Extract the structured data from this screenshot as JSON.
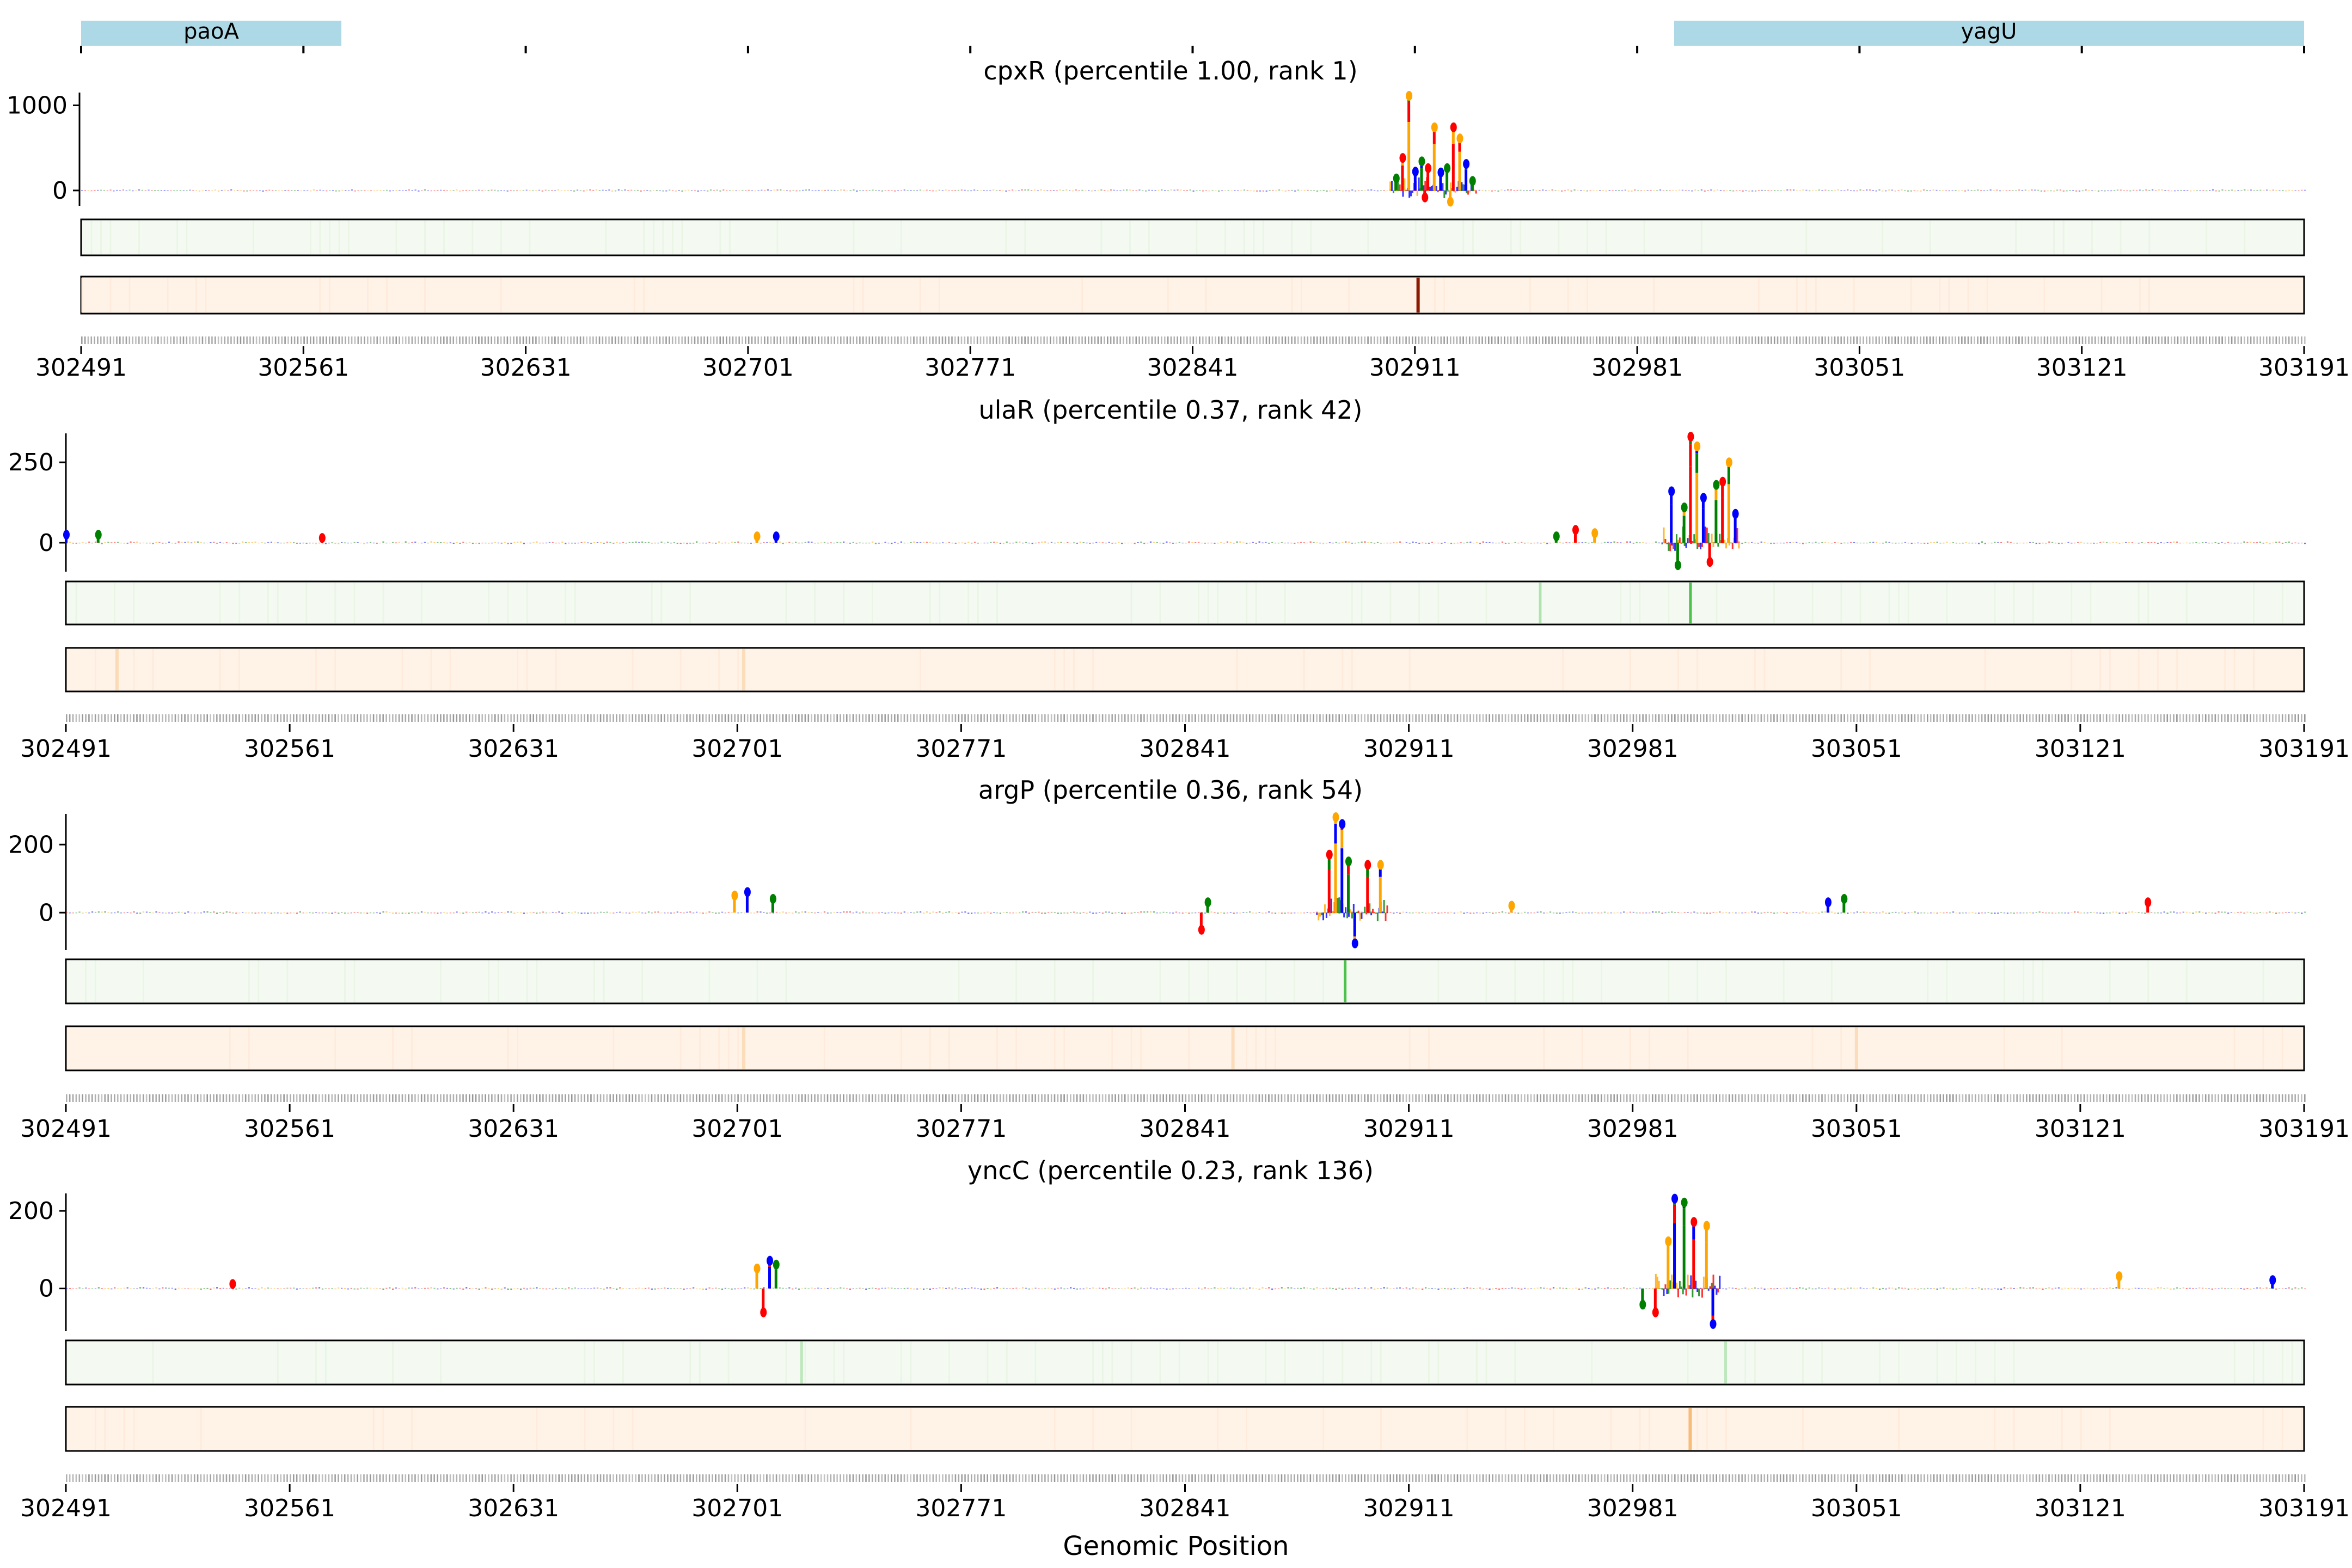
{
  "figure": {
    "xlabel": "Genomic Position",
    "x_ticks": [
      "302491",
      "302561",
      "302631",
      "302701",
      "302771",
      "302841",
      "302911",
      "302981",
      "303051",
      "303121",
      "303191"
    ],
    "colors": {
      "A": "#008000",
      "C": "#0000ff",
      "G": "#ffa500",
      "T": "#ff0000",
      "gene_box": "#add8e6",
      "green_track_bg": "#f4faf2",
      "green_track_peak": "#4cc24c",
      "orange_track_bg": "#fff3e8",
      "orange_track_peak": "#8b1a00",
      "orange_track_peak_soft": "#f5b46a"
    }
  },
  "genes": [
    {
      "name": "paoA",
      "start": 302491,
      "end": 302573
    },
    {
      "name": "yagU",
      "start": 302991,
      "end": 303191
    }
  ],
  "chart_data": [
    {
      "type": "sequence-logo",
      "title": "cpxR (percentile 1.00, rank 1)",
      "xlim": [
        302491,
        303191
      ],
      "ylim": [
        -180,
        1150
      ],
      "y_ticks": [
        0,
        1000
      ],
      "peaks": [
        {
          "x": 302905,
          "value": 180
        },
        {
          "x": 302907,
          "value": 420
        },
        {
          "x": 302909,
          "value": 1150
        },
        {
          "x": 302911,
          "value": 260
        },
        {
          "x": 302913,
          "value": 380
        },
        {
          "x": 302915,
          "value": 300
        },
        {
          "x": 302917,
          "value": 780
        },
        {
          "x": 302919,
          "value": 250
        },
        {
          "x": 302921,
          "value": 300
        },
        {
          "x": 302923,
          "value": 780
        },
        {
          "x": 302925,
          "value": 650
        },
        {
          "x": 302927,
          "value": 350
        },
        {
          "x": 302929,
          "value": 150
        },
        {
          "x": 302914,
          "value": -120
        },
        {
          "x": 302922,
          "value": -170
        }
      ],
      "peak_window": [
        302903,
        302930
      ],
      "green_track_peaks": [],
      "orange_track_peaks": [
        {
          "x": 302912,
          "strength": 1.0
        }
      ]
    },
    {
      "type": "sequence-logo",
      "title": "ulaR (percentile 0.37, rank 42)",
      "xlim": [
        302491,
        303191
      ],
      "ylim": [
        -90,
        340
      ],
      "y_ticks": [
        0,
        250
      ],
      "peaks": [
        {
          "x": 302491,
          "value": 35
        },
        {
          "x": 302501,
          "value": 35
        },
        {
          "x": 302571,
          "value": 25
        },
        {
          "x": 302707,
          "value": 30
        },
        {
          "x": 302713,
          "value": 30
        },
        {
          "x": 302957,
          "value": 30
        },
        {
          "x": 302963,
          "value": 50
        },
        {
          "x": 302969,
          "value": 40
        },
        {
          "x": 302993,
          "value": 170
        },
        {
          "x": 302997,
          "value": 120
        },
        {
          "x": 302999,
          "value": 340
        },
        {
          "x": 303001,
          "value": 310
        },
        {
          "x": 303003,
          "value": 150
        },
        {
          "x": 303007,
          "value": 190
        },
        {
          "x": 303009,
          "value": 200
        },
        {
          "x": 303011,
          "value": 260
        },
        {
          "x": 303013,
          "value": 100
        },
        {
          "x": 302995,
          "value": -80
        },
        {
          "x": 303005,
          "value": -70
        }
      ],
      "peak_window": [
        302990,
        303014
      ],
      "green_track_peaks": [
        {
          "x": 302999,
          "strength": 1.0
        },
        {
          "x": 302952,
          "strength": 0.25
        }
      ],
      "orange_track_peaks": [
        {
          "x": 302507,
          "strength": 0.2
        },
        {
          "x": 302703,
          "strength": 0.15
        }
      ]
    },
    {
      "type": "sequence-logo",
      "title": "argP (percentile 0.36, rank 54)",
      "xlim": [
        302491,
        303191
      ],
      "ylim": [
        -110,
        290
      ],
      "y_ticks": [
        0,
        200
      ],
      "peaks": [
        {
          "x": 302700,
          "value": 60
        },
        {
          "x": 302704,
          "value": 70
        },
        {
          "x": 302712,
          "value": 50
        },
        {
          "x": 302886,
          "value": 180
        },
        {
          "x": 302888,
          "value": 290
        },
        {
          "x": 302890,
          "value": 270
        },
        {
          "x": 302892,
          "value": 160
        },
        {
          "x": 302898,
          "value": 150
        },
        {
          "x": 302902,
          "value": 150
        },
        {
          "x": 302894,
          "value": -100
        },
        {
          "x": 302848,
          "value": 40
        },
        {
          "x": 302846,
          "value": -60
        },
        {
          "x": 302943,
          "value": 30
        },
        {
          "x": 303042,
          "value": 40
        },
        {
          "x": 303047,
          "value": 50
        },
        {
          "x": 303142,
          "value": 40
        }
      ],
      "peak_window": [
        302882,
        302904
      ],
      "green_track_peaks": [
        {
          "x": 302891,
          "strength": 1.0
        }
      ],
      "orange_track_peaks": [
        {
          "x": 302703,
          "strength": 0.15
        },
        {
          "x": 302856,
          "strength": 0.15
        },
        {
          "x": 303051,
          "strength": 0.15
        }
      ]
    },
    {
      "type": "sequence-logo",
      "title": "yncC (percentile 0.23, rank 136)",
      "xlim": [
        302491,
        303191
      ],
      "ylim": [
        -110,
        245
      ],
      "y_ticks": [
        0,
        200
      ],
      "peaks": [
        {
          "x": 302543,
          "value": 20
        },
        {
          "x": 302707,
          "value": 60
        },
        {
          "x": 302711,
          "value": 80
        },
        {
          "x": 302713,
          "value": 70
        },
        {
          "x": 302709,
          "value": -70
        },
        {
          "x": 302992,
          "value": 130
        },
        {
          "x": 302994,
          "value": 240
        },
        {
          "x": 302997,
          "value": 230
        },
        {
          "x": 303000,
          "value": 180
        },
        {
          "x": 303004,
          "value": 170
        },
        {
          "x": 303006,
          "value": -100
        },
        {
          "x": 302984,
          "value": -50
        },
        {
          "x": 302988,
          "value": -70
        },
        {
          "x": 303133,
          "value": 40
        },
        {
          "x": 303181,
          "value": 30
        }
      ],
      "peak_window": [
        302988,
        303008
      ],
      "green_track_peaks": [
        {
          "x": 302721,
          "strength": 0.15
        },
        {
          "x": 303010,
          "strength": 0.15
        }
      ],
      "orange_track_peaks": [
        {
          "x": 302999,
          "strength": 0.9
        }
      ]
    }
  ]
}
